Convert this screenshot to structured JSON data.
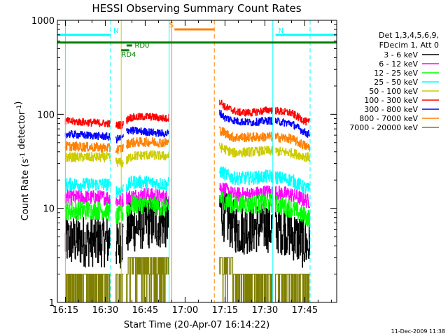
{
  "chart_data": {
    "type": "line",
    "title": "HESSI Observing Summary Count Rates",
    "xlabel": "Start Time (20-Apr-07 16:14:22)",
    "ylabel": "Count Rate (s⁻¹ detector⁻¹)",
    "x_scale": "time",
    "x_range": [
      "16:12",
      "17:57"
    ],
    "x_ticks": [
      "16:15",
      "16:30",
      "16:45",
      "17:00",
      "17:15",
      "17:30",
      "17:45"
    ],
    "y_scale": "log",
    "y_range": [
      1,
      1000
    ],
    "y_ticks": [
      "1",
      "10",
      "100",
      "1000"
    ],
    "grid": false,
    "footer_date": "11-Dec-2009 11:38",
    "legend": {
      "placement": "right",
      "header_lines": [
        "Det 1,3,4,5,6,9,",
        "FDecim 1, Att 0"
      ],
      "entries": [
        {
          "label": "3 - 6 keV",
          "color": "#000000"
        },
        {
          "label": "6 - 12 keV",
          "color": "#ff00ff"
        },
        {
          "label": "12 - 25 keV",
          "color": "#00ff00"
        },
        {
          "label": "25 - 50 keV",
          "color": "#00ffff"
        },
        {
          "label": "50 - 100 keV",
          "color": "#cccc00"
        },
        {
          "label": "100 - 300 keV",
          "color": "#ff0000"
        },
        {
          "label": "300 - 800 keV",
          "color": "#0000ff"
        },
        {
          "label": "800 - 7000 keV",
          "color": "#ff8000"
        },
        {
          "label": "7000 - 20000 keV",
          "color": "#808000"
        }
      ]
    },
    "segments": [
      {
        "start": "16:15",
        "end": "16:32"
      },
      {
        "start": "16:34",
        "end": "16:37"
      },
      {
        "start": "16:38",
        "end": "16:54"
      },
      {
        "start": "17:13",
        "end": "17:33"
      },
      {
        "start": "17:34",
        "end": "17:47"
      }
    ],
    "series": [
      {
        "name": "3 - 6 keV",
        "color": "#000000",
        "noise": 0.28,
        "points": [
          [
            "16:14",
            "4.5"
          ],
          [
            "16:31",
            "4.5"
          ],
          [
            "16:32",
            "5"
          ],
          [
            "16:35",
            "4"
          ],
          [
            "16:37",
            "5"
          ],
          [
            "16:38",
            "6"
          ],
          [
            "16:45",
            "7"
          ],
          [
            "16:53",
            "7"
          ],
          [
            "17:13",
            "11"
          ],
          [
            "17:15",
            "8"
          ],
          [
            "17:20",
            "6"
          ],
          [
            "17:30",
            "6.5"
          ],
          [
            "17:38",
            "6"
          ],
          [
            "17:46",
            "4"
          ]
        ]
      },
      {
        "name": "6 - 12 keV",
        "color": "#ff00ff",
        "noise": 0.08,
        "points": [
          [
            "16:14",
            "13"
          ],
          [
            "16:31",
            "13"
          ],
          [
            "16:33",
            "12"
          ],
          [
            "16:36",
            "12"
          ],
          [
            "16:38",
            "13"
          ],
          [
            "16:45",
            "14"
          ],
          [
            "16:53",
            "13"
          ],
          [
            "17:13",
            "17"
          ],
          [
            "17:18",
            "14"
          ],
          [
            "17:25",
            "14"
          ],
          [
            "17:32",
            "15"
          ],
          [
            "17:40",
            "14"
          ],
          [
            "17:46",
            "12"
          ]
        ]
      },
      {
        "name": "12 - 25 keV",
        "color": "#00ff00",
        "noise": 0.1,
        "points": [
          [
            "16:14",
            "9.5"
          ],
          [
            "16:31",
            "9.5"
          ],
          [
            "16:34",
            "8"
          ],
          [
            "16:37",
            "9"
          ],
          [
            "16:40",
            "11"
          ],
          [
            "16:46",
            "11"
          ],
          [
            "16:53",
            "10"
          ],
          [
            "17:13",
            "13"
          ],
          [
            "17:18",
            "11"
          ],
          [
            "17:25",
            "11"
          ],
          [
            "17:32",
            "11.5"
          ],
          [
            "17:40",
            "10"
          ],
          [
            "17:46",
            "8"
          ]
        ]
      },
      {
        "name": "25 - 50 keV",
        "color": "#00ffff",
        "noise": 0.07,
        "points": [
          [
            "16:14",
            "18"
          ],
          [
            "16:31",
            "18"
          ],
          [
            "16:34",
            "15"
          ],
          [
            "16:37",
            "16"
          ],
          [
            "16:40",
            "19"
          ],
          [
            "16:46",
            "19"
          ],
          [
            "16:53",
            "18"
          ],
          [
            "17:13",
            "25"
          ],
          [
            "17:18",
            "21"
          ],
          [
            "17:25",
            "21"
          ],
          [
            "17:32",
            "22"
          ],
          [
            "17:40",
            "20"
          ],
          [
            "17:46",
            "16"
          ]
        ]
      },
      {
        "name": "50 - 100 keV",
        "color": "#cccc00",
        "noise": 0.05,
        "points": [
          [
            "16:14",
            "35"
          ],
          [
            "16:31",
            "35"
          ],
          [
            "16:33",
            "32"
          ],
          [
            "16:37",
            "30"
          ],
          [
            "16:40",
            "36"
          ],
          [
            "16:46",
            "37"
          ],
          [
            "16:53",
            "36"
          ],
          [
            "17:13",
            "45"
          ],
          [
            "17:18",
            "39"
          ],
          [
            "17:25",
            "40"
          ],
          [
            "17:32",
            "41"
          ],
          [
            "17:40",
            "39"
          ],
          [
            "17:46",
            "35"
          ]
        ]
      },
      {
        "name": "100 - 300 keV",
        "color": "#ff0000",
        "noise": 0.04,
        "points": [
          [
            "16:14",
            "85"
          ],
          [
            "16:31",
            "80"
          ],
          [
            "16:33",
            "76"
          ],
          [
            "16:37",
            "78"
          ],
          [
            "16:39",
            "92"
          ],
          [
            "16:46",
            "95"
          ],
          [
            "16:53",
            "90"
          ],
          [
            "17:13",
            "140"
          ],
          [
            "17:15",
            "120"
          ],
          [
            "17:20",
            "105"
          ],
          [
            "17:25",
            "104"
          ],
          [
            "17:32",
            "112"
          ],
          [
            "17:40",
            "103"
          ],
          [
            "17:46",
            "82"
          ]
        ]
      },
      {
        "name": "300 - 800 keV",
        "color": "#0000ff",
        "noise": 0.04,
        "points": [
          [
            "16:14",
            "62"
          ],
          [
            "16:31",
            "58"
          ],
          [
            "16:34",
            "54"
          ],
          [
            "16:37",
            "57"
          ],
          [
            "16:38",
            "68"
          ],
          [
            "16:46",
            "65"
          ],
          [
            "16:53",
            "62"
          ],
          [
            "17:13",
            "105"
          ],
          [
            "17:15",
            "92"
          ],
          [
            "17:20",
            "84"
          ],
          [
            "17:25",
            "82"
          ],
          [
            "17:32",
            "86"
          ],
          [
            "17:40",
            "80"
          ],
          [
            "17:46",
            "62"
          ]
        ]
      },
      {
        "name": "800 - 7000 keV",
        "color": "#ff8000",
        "noise": 0.05,
        "points": [
          [
            "16:14",
            "46"
          ],
          [
            "16:31",
            "44"
          ],
          [
            "16:34",
            "42"
          ],
          [
            "16:37",
            "44"
          ],
          [
            "16:39",
            "50"
          ],
          [
            "16:46",
            "51"
          ],
          [
            "16:53",
            "50"
          ],
          [
            "17:13",
            "68"
          ],
          [
            "17:18",
            "57"
          ],
          [
            "17:25",
            "57"
          ],
          [
            "17:32",
            "58"
          ],
          [
            "17:40",
            "55"
          ],
          [
            "17:46",
            "45"
          ]
        ]
      },
      {
        "name": "7000 - 20000 keV",
        "color": "#808000",
        "noise": 0,
        "quantized": [
          "1",
          "2",
          "3"
        ],
        "points": [
          [
            "16:14",
            "1"
          ],
          [
            "16:31",
            "1"
          ],
          [
            "16:40",
            "2"
          ],
          [
            "16:53",
            "2"
          ],
          [
            "17:13",
            "2"
          ],
          [
            "17:46",
            "1"
          ]
        ]
      }
    ],
    "annotations": {
      "flags": [
        {
          "label": "N",
          "color": "#00ffff",
          "start": "16:12",
          "end": "16:32",
          "y": "700",
          "label_at": "16:32"
        },
        {
          "label": "N",
          "color": "#00ffff",
          "start": "17:34",
          "end": "17:57",
          "y": "700"
        },
        {
          "label": "S",
          "color": "#ff8000",
          "start": "16:56",
          "end": "17:11",
          "y": "800",
          "label_at": "16:53"
        },
        {
          "label": "",
          "color": "#008000",
          "start": "16:12",
          "end": "17:57",
          "y": "580"
        },
        {
          "label": "RD4",
          "color": "#008000",
          "start": "16:36",
          "end": "16:39",
          "y": "480",
          "label_at": "16:30"
        },
        {
          "label": "RD0",
          "color": "#008000",
          "start": "16:38",
          "end": "16:38",
          "y": "540",
          "label_at": "16:40"
        }
      ],
      "vlines": [
        {
          "x": "16:15",
          "color": "#00ffff",
          "style": "solid"
        },
        {
          "x": "16:32",
          "color": "#00ffff",
          "style": "dashed"
        },
        {
          "x": "16:54",
          "color": "#00ffff",
          "style": "solid"
        },
        {
          "x": "16:36",
          "color": "#cccc00",
          "style": "solid"
        },
        {
          "x": "16:55",
          "color": "#ff8000",
          "style": "solid"
        },
        {
          "x": "17:11",
          "color": "#ff8000",
          "style": "dashed"
        },
        {
          "x": "17:33",
          "color": "#00ffff",
          "style": "solid"
        },
        {
          "x": "17:47",
          "color": "#00ffff",
          "style": "dashed"
        }
      ]
    }
  }
}
